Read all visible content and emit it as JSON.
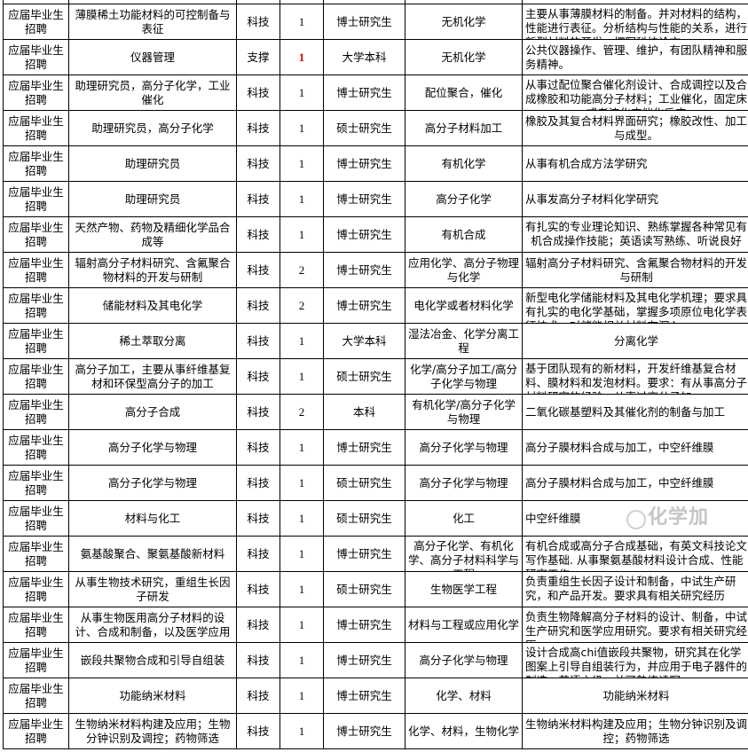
{
  "rows": [
    {
      "type": "应届毕业生招聘",
      "position": "薄膜稀土功能材料的可控制备与表征",
      "category": "科技",
      "count": "1",
      "education": "博士研究生",
      "major": "无机化学",
      "requirement": "主要从事薄膜材料的制备。并对材料的结构，性能进行表征。分析结构与性能的关系，进行新型材料的开发，撰写科技论文"
    },
    {
      "type": "应届毕业生招聘",
      "position": "仪器管理",
      "category": "支撑",
      "count": "1",
      "education": "大学本科",
      "major": "无机化学",
      "requirement": "公共仪器操作、管理、维护，有团队精神和服务精神。"
    },
    {
      "type": "应届毕业生招聘",
      "position": "助理研究员，高分子化学，工业催化",
      "category": "科技",
      "count": "1",
      "education": "博士研究生",
      "major": "配位聚合，催化",
      "requirement": "从事过配位聚合催化剂设计、合成调控以及合成橡胶和功能高分子材料；工业催化，固定床或者流化床催化反应"
    },
    {
      "type": "应届毕业生招聘",
      "position": "助理研究员，高分子化学",
      "category": "科技",
      "count": "1",
      "education": "硕士研究生",
      "major": "高分子材料加工",
      "requirement": "橡胶及其复合材料界面研究；橡胶改性、加工与成型。"
    },
    {
      "type": "应届毕业生招聘",
      "position": "助理研究员",
      "category": "科技",
      "count": "1",
      "education": "博士研究生",
      "major": "有机化学",
      "requirement": "从事有机合成方法学研究"
    },
    {
      "type": "应届毕业生招聘",
      "position": "助理研究员",
      "category": "科技",
      "count": "1",
      "education": "博士研究生",
      "major": "高分子化学",
      "requirement": "从事发高分子材料化学研究"
    },
    {
      "type": "应届毕业生招聘",
      "position": "天然产物、药物及精细化学品合成等",
      "category": "科技",
      "count": "1",
      "education": "博士研究生",
      "major": "有机合成",
      "requirement": "有扎实的专业理论知识、熟练掌握各种常见有机合成操作技能；英语读写熟练、听说良好"
    },
    {
      "type": "应届毕业生招聘",
      "position": "辐射高分子材料研究、含氟聚合物材料的开发与研制",
      "category": "科技",
      "count": "2",
      "education": "博士研究生",
      "major": "应用化学、高分子物理与化学",
      "requirement": "辐射高分子材料研究、含氟聚合物材料的开发与研制"
    },
    {
      "type": "应届毕业生招聘",
      "position": "储能材料及其电化学",
      "category": "科技",
      "count": "2",
      "education": "博士研究生",
      "major": "电化学或者材料化学",
      "requirement": "新型电化学储能材料及其电化学机理；要求具有扎实的电化学基础，掌握多项原位电化学表征技术，对储能相关材料有深入"
    },
    {
      "type": "应届毕业生招聘",
      "position": "稀土萃取分离",
      "category": "科技",
      "count": "1",
      "education": "大学本科",
      "major": "湿法冶金、化学分离工程",
      "requirement": "分离化学"
    },
    {
      "type": "应届毕业生招聘",
      "position": "高分子加工，主要从事纤维基复材和环保型高分子的加工",
      "category": "科技",
      "count": "1",
      "education": "硕士研究生",
      "major": "化学/高分子加工/高分子化学与物理",
      "requirement": "基于团队现有的新材料，开发纤维基复合材料、膜材料和发泡材料。要求：有从事高分子材料研究的经验，从事过高分子加"
    },
    {
      "type": "应届毕业生招聘",
      "position": "高分子合成",
      "category": "科技",
      "count": "2",
      "education": "本科",
      "major": "有机化学/高分子化学与物理",
      "requirement": "二氧化碳基塑料及其催化剂的制备与加工"
    },
    {
      "type": "应届毕业生招聘",
      "position": "高分子化学与物理",
      "category": "科技",
      "count": "1",
      "education": "博士研究生",
      "major": "高分子化学与物理",
      "requirement": "高分子膜材料合成与加工，中空纤维膜"
    },
    {
      "type": "应届毕业生招聘",
      "position": "高分子化学与物理",
      "category": "科技",
      "count": "1",
      "education": "硕士研究生",
      "major": "高分子化学与物理",
      "requirement": "高分子膜材料合成与加工，中空纤维膜"
    },
    {
      "type": "应届毕业生招聘",
      "position": "材料与化工",
      "category": "科技",
      "count": "1",
      "education": "硕士研究生",
      "major": "化工",
      "requirement": "中空纤维膜"
    },
    {
      "type": "应届毕业生招聘",
      "position": "氨基酸聚合、聚氨基酸新材料",
      "category": "科技",
      "count": "1",
      "education": "博士研究生",
      "major": "高分子化学、有机化学、高分子材料科学与工程",
      "requirement": "有机合成或高分子合成基础，有英文科技论文写作基础. 从事聚氨基酸材料设计合成、性能研究工作"
    },
    {
      "type": "应届毕业生招聘",
      "position": "从事生物技术研究，重组生长因子研发",
      "category": "科技",
      "count": "1",
      "education": "硕士研究生",
      "major": "生物医学工程",
      "requirement": "负责重组生长因子设计和制备，中试生产研究，和产品开发。要求具有相关研究经历"
    },
    {
      "type": "应届毕业生招聘",
      "position": "从事生物医用高分子材料的设计、合成和制备，以及医学应用",
      "category": "科技",
      "count": "1",
      "education": "博士研究生",
      "major": "材料与工程或应用化学",
      "requirement": "负责生物降解高分子材料的设计、制备，中试生产研究和医学应用研究。要求有相关研究经历"
    },
    {
      "type": "应届毕业生招聘",
      "position": "嵌段共聚物合成和引导自组装",
      "category": "科技",
      "count": "1",
      "education": "博士研究生",
      "major": "高分子化学与物理",
      "requirement": "设计合成高chi值嵌段共聚物，研究其在化学图案上引导自组装行为，并应用于电子器件的制造，英语六级，并可熟练读写"
    },
    {
      "type": "应届毕业生招聘",
      "position": "功能纳米材料",
      "category": "科技",
      "count": "1",
      "education": "博士研究生",
      "major": "化学、材料",
      "requirement": "功能纳米材料"
    },
    {
      "type": "应届毕业生招聘",
      "position": "生物纳米材料构建及应用；生物分钟识别及调控；药物筛选",
      "category": "科技",
      "count": "1",
      "education": "博士研究生",
      "major": "化学、材料，生物化学",
      "requirement": "生物纳米材料构建及应用；生物分钟识别及调控；药物筛选"
    }
  ],
  "highlight_color": "#e00000",
  "watermark": "化学加"
}
